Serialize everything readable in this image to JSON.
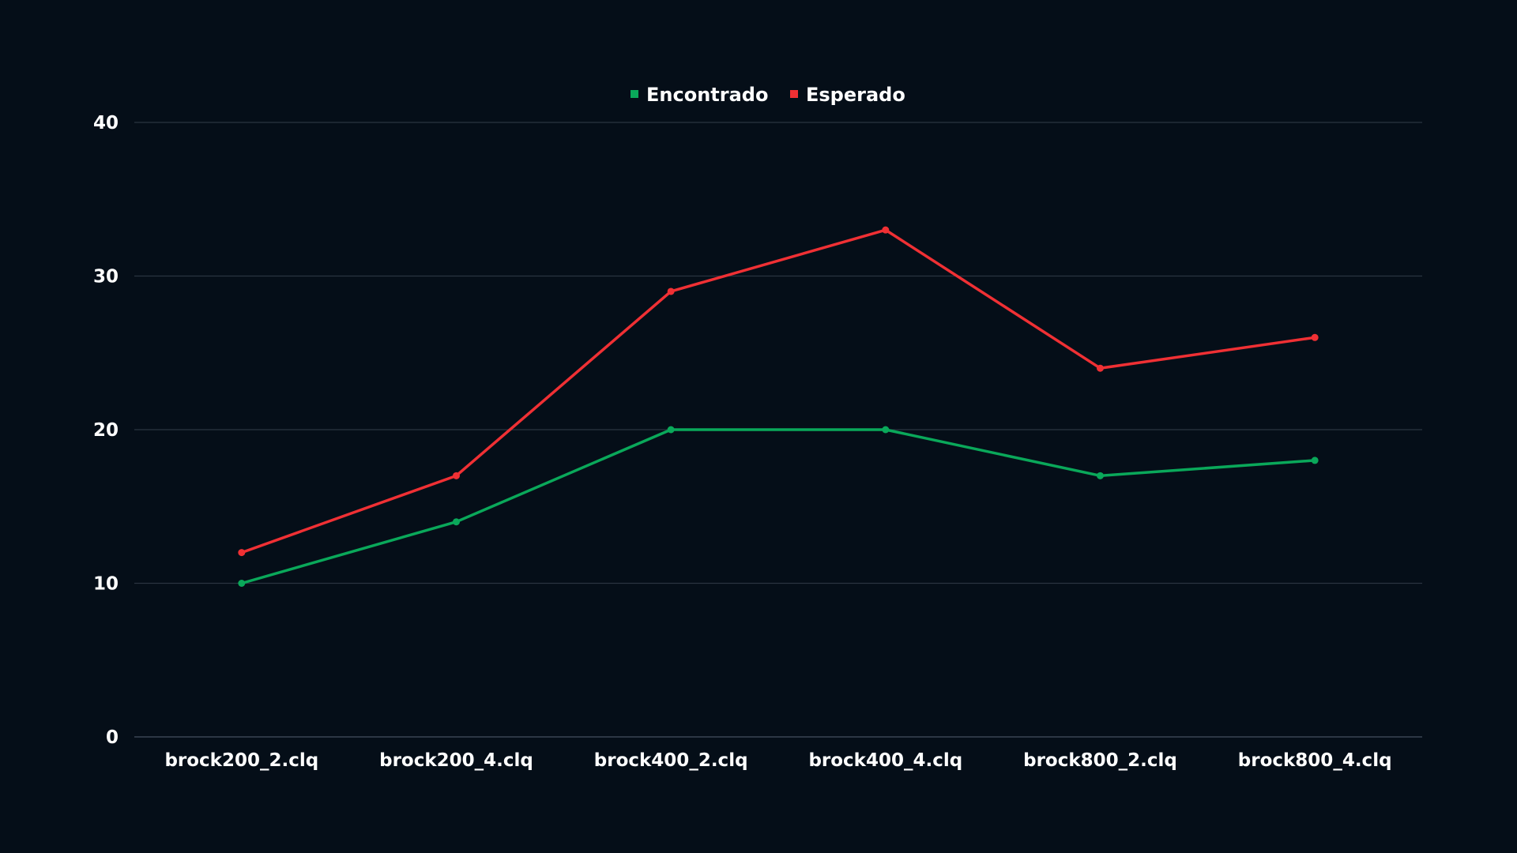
{
  "chart_data": {
    "type": "line",
    "categories": [
      "brock200_2.clq",
      "brock200_4.clq",
      "brock400_2.clq",
      "brock400_4.clq",
      "brock800_2.clq",
      "brock800_4.clq"
    ],
    "series": [
      {
        "name": "Encontrado",
        "color": "#0aa85a",
        "values": [
          10,
          14,
          20,
          20,
          17,
          18
        ]
      },
      {
        "name": "Esperado",
        "color": "#f03034",
        "values": [
          12,
          17,
          29,
          33,
          24,
          26
        ]
      }
    ],
    "yticks": [
      0,
      10,
      20,
      30,
      40
    ],
    "ylim": [
      0,
      40
    ],
    "grid": true,
    "legend": "top-center",
    "colors": {
      "background": "#050e18",
      "text": "#ffffff"
    }
  }
}
